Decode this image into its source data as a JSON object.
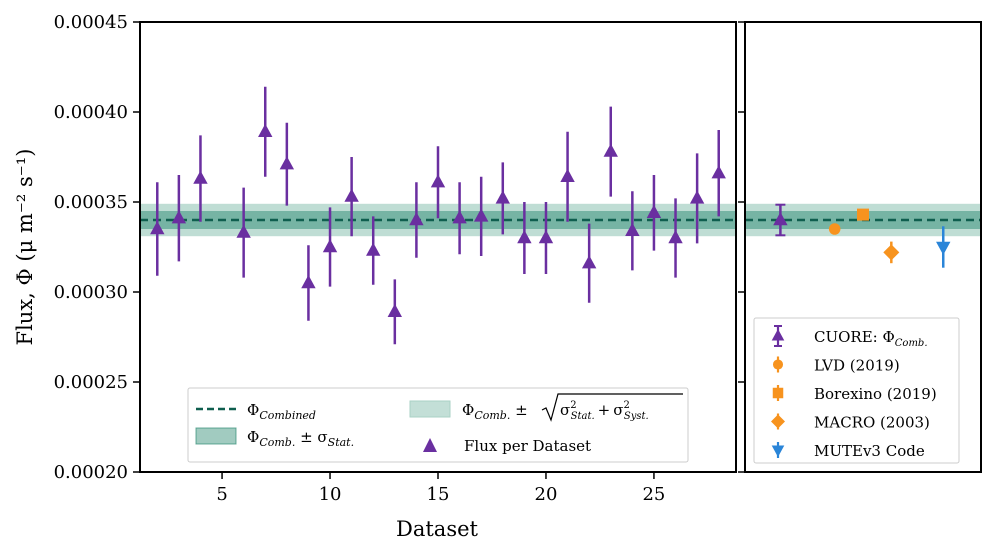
{
  "chart_data": [
    {
      "type": "scatter",
      "panel": "main",
      "xlabel": "Dataset",
      "ylabel": "Flux, Φ (μ m⁻² s⁻¹)",
      "xlim": [
        1.2,
        28.8
      ],
      "ylim": [
        0.0002,
        0.00045
      ],
      "xticks": [
        5,
        10,
        15,
        20,
        25
      ],
      "yticks": [
        0.0002,
        0.00025,
        0.0003,
        0.00035,
        0.0004,
        0.00045
      ],
      "ytick_labels": [
        "0.00020",
        "0.00025",
        "0.00030",
        "0.00035",
        "0.00040",
        "0.00045"
      ],
      "combined": 0.00034,
      "stat_band": [
        0.000335,
        0.000345
      ],
      "total_band": [
        0.000331,
        0.000349
      ],
      "series": [
        {
          "name": "Flux per Dataset",
          "color": "#6a2fa0",
          "marker": "triangle-up",
          "points": [
            {
              "x": 2,
              "y": 0.000335,
              "err": 2.6e-05
            },
            {
              "x": 3,
              "y": 0.000341,
              "err": 2.4e-05
            },
            {
              "x": 4,
              "y": 0.000363,
              "err": 2.4e-05
            },
            {
              "x": 6,
              "y": 0.000333,
              "err": 2.5e-05
            },
            {
              "x": 7,
              "y": 0.000389,
              "err": 2.5e-05
            },
            {
              "x": 8,
              "y": 0.000371,
              "err": 2.3e-05
            },
            {
              "x": 9,
              "y": 0.000305,
              "err": 2.1e-05
            },
            {
              "x": 10,
              "y": 0.000325,
              "err": 2.2e-05
            },
            {
              "x": 11,
              "y": 0.000353,
              "err": 2.2e-05
            },
            {
              "x": 12,
              "y": 0.000323,
              "err": 1.9e-05
            },
            {
              "x": 13,
              "y": 0.000289,
              "err": 1.8e-05
            },
            {
              "x": 14,
              "y": 0.00034,
              "err": 2.1e-05
            },
            {
              "x": 15,
              "y": 0.000361,
              "err": 2e-05
            },
            {
              "x": 16,
              "y": 0.000341,
              "err": 2e-05
            },
            {
              "x": 17,
              "y": 0.000342,
              "err": 2.2e-05
            },
            {
              "x": 18,
              "y": 0.000352,
              "err": 2e-05
            },
            {
              "x": 19,
              "y": 0.00033,
              "err": 2e-05
            },
            {
              "x": 20,
              "y": 0.00033,
              "err": 2e-05
            },
            {
              "x": 21,
              "y": 0.000364,
              "err": 2.5e-05
            },
            {
              "x": 22,
              "y": 0.000316,
              "err": 2.2e-05
            },
            {
              "x": 23,
              "y": 0.000378,
              "err": 2.5e-05
            },
            {
              "x": 24,
              "y": 0.000334,
              "err": 2.2e-05
            },
            {
              "x": 25,
              "y": 0.000344,
              "err": 2.1e-05
            },
            {
              "x": 26,
              "y": 0.00033,
              "err": 2.2e-05
            },
            {
              "x": 27,
              "y": 0.000352,
              "err": 2.5e-05
            },
            {
              "x": 28,
              "y": 0.000366,
              "err": 2.4e-05
            }
          ]
        }
      ],
      "legend": {
        "placement": "lower-center",
        "entries": [
          {
            "label": "Φ",
            "sub": "Combined",
            "kind": "dashed-line"
          },
          {
            "label": "Φ",
            "sub": "Comb.",
            "suffix": " ± σ",
            "suffix_sub": "Stat.",
            "kind": "dark-band"
          },
          {
            "label": "Φ",
            "sub": "Comb.",
            "suffix": " ± √(σ²Stat. + σ²Syst.)",
            "kind": "light-band"
          },
          {
            "label": "Flux per Dataset",
            "kind": "triangle-marker"
          }
        ],
        "sqrt_parts": {
          "sigma": "σ",
          "two": "2",
          "stat": "Stat.",
          "plus": "+",
          "syst": "Syst."
        }
      }
    },
    {
      "type": "scatter",
      "panel": "comparison",
      "xlim": [
        0,
        1
      ],
      "ylim": [
        0.0002,
        0.00045
      ],
      "series": [
        {
          "name": "CUORE: Φ",
          "name_sub": "Comb.",
          "color": "#6a2fa0",
          "marker": "triangle-up",
          "pos": 0.15,
          "y": 0.00034,
          "err": 8.5e-06
        },
        {
          "name": "LVD (2019)",
          "color": "#f7931e",
          "marker": "circle",
          "pos": 0.38,
          "y": 0.000335,
          "err": 0.0
        },
        {
          "name": "Borexino (2019)",
          "color": "#f7931e",
          "marker": "square",
          "pos": 0.5,
          "y": 0.000343,
          "err": 0.0
        },
        {
          "name": "MACRO (2003)",
          "color": "#f7931e",
          "marker": "diamond",
          "pos": 0.62,
          "y": 0.000322,
          "err": 6e-06
        },
        {
          "name": "MUTEv3 Code",
          "color": "#2a85d8",
          "marker": "triangle-down",
          "pos": 0.84,
          "y": 0.000325,
          "err": 1.15e-05
        }
      ],
      "legend": {
        "placement": "lower-right"
      }
    }
  ],
  "colors": {
    "flux": "#6a2fa0",
    "orange": "#f7931e",
    "blue": "#2a85d8",
    "combined_line": "#0f5e4e",
    "stat_band": "#2e8b73",
    "total_band": "#a9d2c6"
  }
}
